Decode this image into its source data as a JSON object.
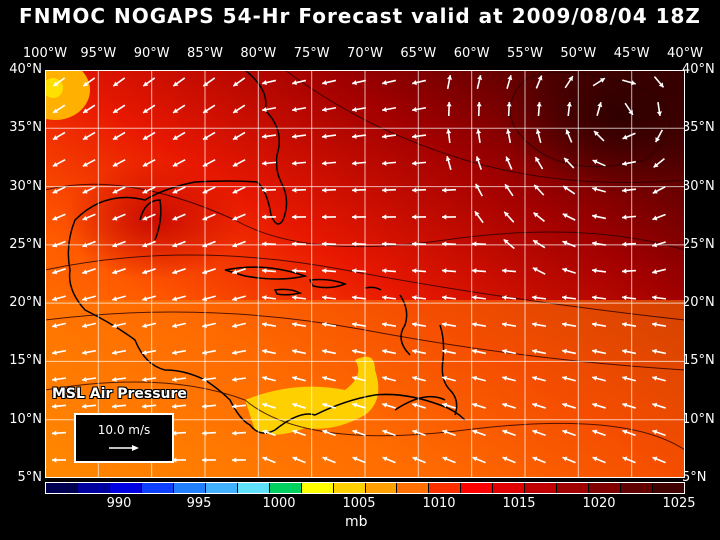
{
  "title": "FNMOC NOGAPS 54-Hr Forecast valid at 2009/08/04 18Z",
  "longitudes": [
    "100°W",
    "95°W",
    "90°W",
    "85°W",
    "80°W",
    "75°W",
    "70°W",
    "65°W",
    "60°W",
    "55°W",
    "50°W",
    "45°W",
    "40°W"
  ],
  "latitudes": [
    "40°N",
    "35°N",
    "30°N",
    "25°N",
    "20°N",
    "15°N",
    "10°N",
    "5°N"
  ],
  "layer_label": "MSL Air Pressure",
  "reference_vector": {
    "label": "10.0 m/s",
    "speed_ms": 10.0
  },
  "colorbar": {
    "unit": "mb",
    "labels": [
      "990",
      "995",
      "1000",
      "1005",
      "1010",
      "1015",
      "1020",
      "1025"
    ],
    "colors": [
      "#000050",
      "#0000a0",
      "#0000e0",
      "#1040ff",
      "#2080ff",
      "#40b0ff",
      "#60e0ff",
      "#00d060",
      "#ffff00",
      "#ffd000",
      "#ffa000",
      "#ff7000",
      "#ff3000",
      "#ff0000",
      "#e00000",
      "#c00000",
      "#a00000",
      "#800000",
      "#600000",
      "#400000"
    ]
  },
  "map_colors": {
    "pressure_low": "#ff8c00",
    "pressure_high": "#3a0000",
    "wind_vectors": "#ffffff"
  }
}
